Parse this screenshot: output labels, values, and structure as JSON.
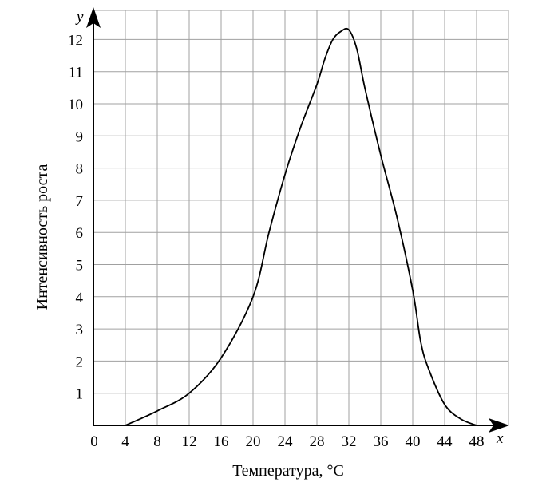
{
  "chart_data": {
    "type": "line",
    "xlabel": "Температура, °C",
    "ylabel": "Интенсивность роста",
    "x_axis_letter": "x",
    "y_axis_letter": "y",
    "origin_label": "0",
    "xlim": [
      0,
      52
    ],
    "ylim": [
      0,
      12.5
    ],
    "x_ticks": [
      4,
      8,
      12,
      16,
      20,
      24,
      28,
      32,
      36,
      40,
      44,
      48
    ],
    "y_ticks": [
      1,
      2,
      3,
      4,
      5,
      6,
      7,
      8,
      9,
      10,
      11,
      12
    ],
    "grid": true,
    "series": [
      {
        "points": [
          [
            4,
            0
          ],
          [
            8,
            0.45
          ],
          [
            12,
            1.0
          ],
          [
            16,
            2.1
          ],
          [
            20,
            4.0
          ],
          [
            22,
            6.0
          ],
          [
            24,
            7.8
          ],
          [
            26,
            9.3
          ],
          [
            28,
            10.6
          ],
          [
            29,
            11.4
          ],
          [
            30,
            12.0
          ],
          [
            31,
            12.25
          ],
          [
            32,
            12.3
          ],
          [
            33,
            11.7
          ],
          [
            34,
            10.5
          ],
          [
            36,
            8.4
          ],
          [
            38,
            6.5
          ],
          [
            40,
            4.2
          ],
          [
            41,
            2.6
          ],
          [
            42,
            1.75
          ],
          [
            44,
            0.65
          ],
          [
            46,
            0.2
          ],
          [
            48,
            0
          ]
        ]
      }
    ]
  }
}
